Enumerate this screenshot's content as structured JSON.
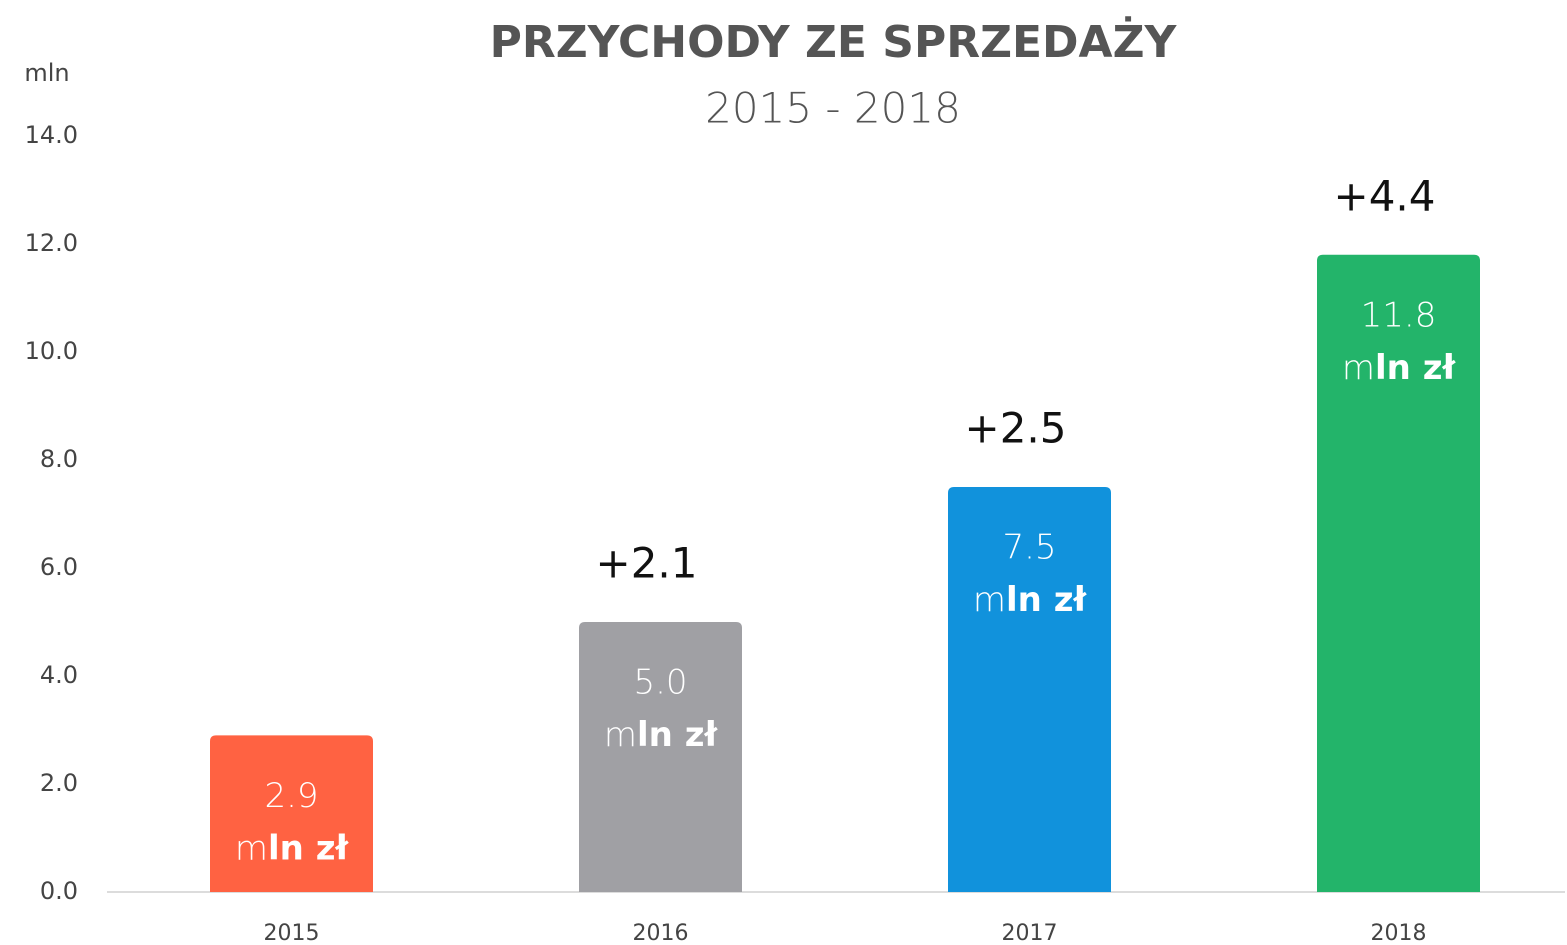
{
  "chart_data": {
    "type": "bar",
    "title": "PRZYCHODY ZE SPRZEDAŻY",
    "subtitle": "2015 - 2018",
    "y_axis_label": "mln",
    "categories": [
      "2015",
      "2016",
      "2017",
      "2018"
    ],
    "values": [
      2.9,
      5.0,
      7.5,
      11.8
    ],
    "value_labels": [
      "2.9",
      "5.0",
      "7.5",
      "11.8"
    ],
    "bar_unit": [
      "m",
      "ln zł"
    ],
    "change_labels": [
      null,
      "+2.1",
      "+2.5",
      "+4.4"
    ],
    "colors": [
      "#ff6242",
      "#a0a0a4",
      "#1192dc",
      "#23b46a"
    ],
    "ylim": [
      0,
      14
    ],
    "yticks": [
      {
        "value": 0,
        "label": "0.0"
      },
      {
        "value": 2,
        "label": "2.0"
      },
      {
        "value": 4,
        "label": "4.0"
      },
      {
        "value": 6,
        "label": "6.0"
      },
      {
        "value": 8,
        "label": "8.0"
      },
      {
        "value": 10,
        "label": "10.0"
      },
      {
        "value": 12,
        "label": "12.0"
      },
      {
        "value": 14,
        "label": "14.0"
      }
    ],
    "grid": false
  }
}
